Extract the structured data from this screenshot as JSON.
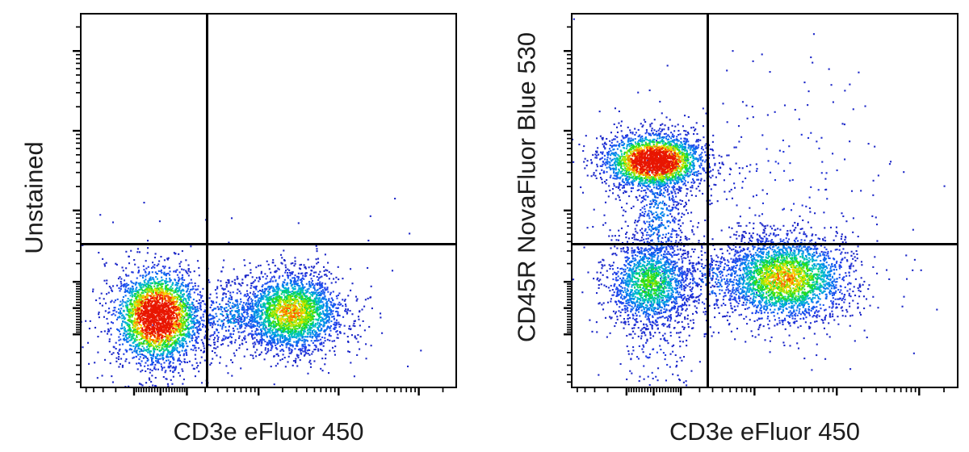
{
  "figure": {
    "background": "#ffffff",
    "text_color": "#1d1d1d",
    "frame_color": "#000000",
    "quadrant_line_color": "#000000",
    "tick_color": "#000000"
  },
  "chart_data": [
    {
      "type": "scatter",
      "id": "unstained-panel",
      "title": "",
      "xlabel": "CD3e eFluor 450",
      "ylabel": "Unstained",
      "grid": false,
      "legend": "none",
      "axes": {
        "scale": "biexponential",
        "cofactor": 120,
        "min": -600,
        "max": 300000,
        "tick_labels_shown": false
      },
      "quadrant_gate_frac": {
        "x": 0.338,
        "y": 0.617
      },
      "coords_note": "cx,cy,sx,sy are fractions of the plot area; cy measured from top",
      "populations": [
        {
          "name": "autofluorescence-negative",
          "cx": 0.206,
          "cy": 0.81,
          "sx": 0.056,
          "sy": 0.06,
          "n": 2800,
          "peak": 1.4
        },
        {
          "name": "autofluorescence-dim",
          "cx": 0.56,
          "cy": 0.798,
          "sx": 0.068,
          "sy": 0.052,
          "n": 2600,
          "peak": 0.8
        },
        {
          "name": "inter-population-bridge",
          "cx": 0.4,
          "cy": 0.805,
          "sx": 0.052,
          "sy": 0.046,
          "n": 350,
          "peak": 0.32
        },
        {
          "name": "debris-tail",
          "cx": 0.25,
          "cy": 0.925,
          "sx": 0.06,
          "sy": 0.055,
          "n": 90,
          "peak": 0.12
        },
        {
          "name": "stray-events",
          "cx": 0.78,
          "cy": 0.52,
          "sx": 0.09,
          "sy": 0.06,
          "n": 3,
          "peak": 0.05
        }
      ]
    },
    {
      "type": "scatter",
      "id": "stained-panel",
      "title": "",
      "xlabel": "CD3e eFluor 450",
      "ylabel": "CD45R NovaFluor Blue 530",
      "grid": false,
      "legend": "none",
      "axes": {
        "scale": "biexponential",
        "cofactor": 120,
        "min": -600,
        "max": 300000,
        "tick_labels_shown": false
      },
      "quadrant_gate_frac": {
        "x": 0.354,
        "y": 0.617
      },
      "coords_note": "cx,cy,sx,sy are fractions of the plot area; cy measured from top",
      "populations": [
        {
          "name": "b-cells-cd45r-positive",
          "cx": 0.215,
          "cy": 0.396,
          "sx": 0.0625,
          "sy": 0.036,
          "n": 2500,
          "peak": 1.4
        },
        {
          "name": "b-cell-lower-tail",
          "cx": 0.228,
          "cy": 0.545,
          "sx": 0.034,
          "sy": 0.1,
          "n": 480,
          "peak": 0.3
        },
        {
          "name": "double-negative-lymphocytes",
          "cx": 0.205,
          "cy": 0.72,
          "sx": 0.054,
          "sy": 0.058,
          "n": 1700,
          "peak": 0.58
        },
        {
          "name": "t-cells-cd3e-positive",
          "cx": 0.552,
          "cy": 0.708,
          "sx": 0.082,
          "sy": 0.056,
          "n": 2800,
          "peak": 0.8
        },
        {
          "name": "dn-t-bridge",
          "cx": 0.37,
          "cy": 0.715,
          "sx": 0.06,
          "sy": 0.048,
          "n": 220,
          "peak": 0.26
        },
        {
          "name": "upper-right-sparse",
          "cx": 0.56,
          "cy": 0.43,
          "sx": 0.14,
          "sy": 0.14,
          "n": 170,
          "peak": 0.1
        },
        {
          "name": "debris-tail",
          "cx": 0.215,
          "cy": 0.9,
          "sx": 0.05,
          "sy": 0.075,
          "n": 130,
          "peak": 0.12
        }
      ]
    }
  ],
  "colormap": {
    "name": "flow-pseudocolor-jet",
    "stops": [
      [
        0.0,
        "#1a1ab8"
      ],
      [
        0.15,
        "#2244ee"
      ],
      [
        0.3,
        "#0080f0"
      ],
      [
        0.42,
        "#00c0d0"
      ],
      [
        0.52,
        "#00d464"
      ],
      [
        0.62,
        "#38e000"
      ],
      [
        0.72,
        "#b4e800"
      ],
      [
        0.8,
        "#ffe000"
      ],
      [
        0.88,
        "#ff9000"
      ],
      [
        0.95,
        "#ff4800"
      ],
      [
        1.0,
        "#e81600"
      ]
    ]
  }
}
